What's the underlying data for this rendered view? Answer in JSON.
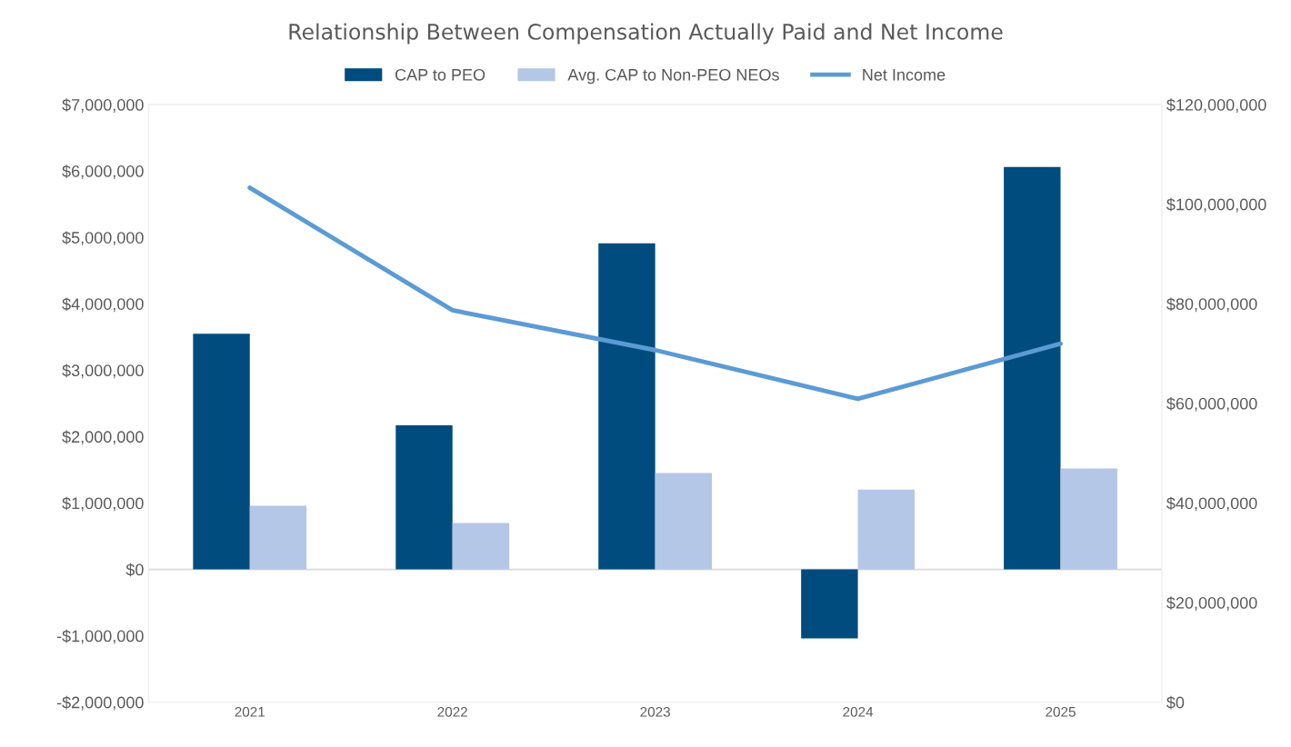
{
  "chart_data": {
    "type": "bar",
    "title": "Relationship Between Compensation Actually Paid and Net Income",
    "categories": [
      "2021",
      "2022",
      "2023",
      "2024",
      "2025"
    ],
    "series": [
      {
        "name": "CAP to PEO",
        "color": "#004c7f",
        "values": [
          3550000,
          2170000,
          4910000,
          -1040000,
          6060000
        ]
      },
      {
        "name": "Avg. CAP to Non-PEO NEOs",
        "color": "#b4c7e7",
        "values": [
          960000,
          700000,
          1450000,
          1200000,
          1520000
        ]
      },
      {
        "name": "Net Income",
        "type": "line",
        "axis": "y2",
        "color": "#5b9bd5",
        "values": [
          103300000,
          78700000,
          70700000,
          60900000,
          72000000
        ]
      }
    ],
    "ylim": [
      -2000000,
      7000000
    ],
    "yticks": [
      {
        "value": -2000000,
        "label": "-$2,000,000"
      },
      {
        "value": -1000000,
        "label": "-$1,000,000"
      },
      {
        "value": 0,
        "label": "$0"
      },
      {
        "value": 1000000,
        "label": "$1,000,000"
      },
      {
        "value": 2000000,
        "label": "$2,000,000"
      },
      {
        "value": 3000000,
        "label": "$3,000,000"
      },
      {
        "value": 4000000,
        "label": "$4,000,000"
      },
      {
        "value": 5000000,
        "label": "$5,000,000"
      },
      {
        "value": 6000000,
        "label": "$6,000,000"
      },
      {
        "value": 7000000,
        "label": "$7,000,000"
      }
    ],
    "y2lim": [
      0,
      120000000
    ],
    "y2ticks": [
      {
        "value": 0,
        "label": "$0"
      },
      {
        "value": 20000000,
        "label": "$20,000,000"
      },
      {
        "value": 40000000,
        "label": "$40,000,000"
      },
      {
        "value": 60000000,
        "label": "$60,000,000"
      },
      {
        "value": 80000000,
        "label": "$80,000,000"
      },
      {
        "value": 100000000,
        "label": "$100,000,000"
      },
      {
        "value": 120000000,
        "label": "$120,000,000"
      }
    ],
    "ref_lines": [
      {
        "axis": "y",
        "value": 0,
        "color": "#d9d9d9"
      }
    ],
    "legend": "top",
    "grid": false
  }
}
